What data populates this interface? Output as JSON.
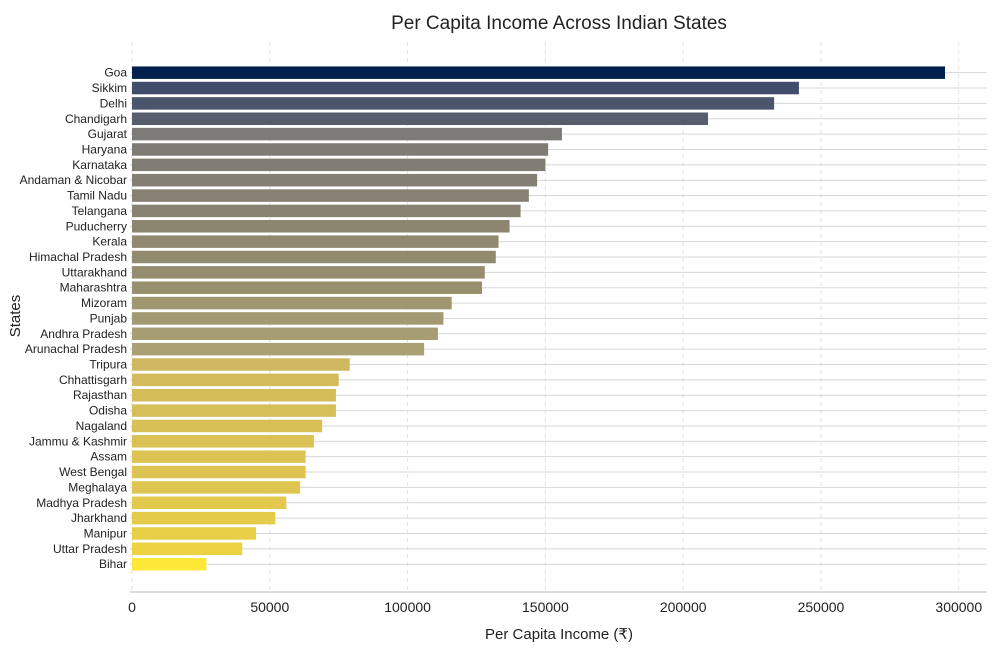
{
  "chart_data": {
    "type": "bar",
    "orientation": "horizontal",
    "title": "Per Capita Income Across Indian States",
    "xlabel": "Per Capita Income (₹)",
    "ylabel": "States",
    "xlim": [
      0,
      310000
    ],
    "xticks": [
      "0",
      "50000",
      "100000",
      "150000",
      "200000",
      "250000",
      "300000"
    ],
    "grid": true,
    "color_scale": "cividis",
    "categories": [
      "Goa",
      "Sikkim",
      "Delhi",
      "Chandigarh",
      "Gujarat",
      "Haryana",
      "Karnataka",
      "Andaman & Nicobar",
      "Tamil Nadu",
      "Telangana",
      "Puducherry",
      "Kerala",
      "Himachal Pradesh",
      "Uttarakhand",
      "Maharashtra",
      "Mizoram",
      "Punjab",
      "Andhra Pradesh",
      "Arunachal Pradesh",
      "Tripura",
      "Chhattisgarh",
      "Rajasthan",
      "Odisha",
      "Nagaland",
      "Jammu & Kashmir",
      "Assam",
      "West Bengal",
      "Meghalaya",
      "Madhya Pradesh",
      "Jharkhand",
      "Manipur",
      "Uttar Pradesh",
      "Bihar"
    ],
    "values": [
      295000,
      242000,
      233000,
      209000,
      156000,
      151000,
      150000,
      147000,
      144000,
      141000,
      137000,
      133000,
      132000,
      128000,
      127000,
      116000,
      113000,
      111000,
      106000,
      79000,
      75000,
      74000,
      74000,
      69000,
      66000,
      63000,
      63000,
      61000,
      56000,
      52000,
      45000,
      40000,
      27000
    ],
    "colors": [
      "#00204d",
      "#414d6b",
      "#4b566d",
      "#575d6d",
      "#7c7b78",
      "#7f7c75",
      "#807d75",
      "#837f74",
      "#868173",
      "#878272",
      "#8c8671",
      "#908970",
      "#918a6f",
      "#958d6e",
      "#978f6d",
      "#a09770",
      "#a29a72",
      "#a69d73",
      "#aba074",
      "#cfb85f",
      "#d3bb5c",
      "#d5bd5a",
      "#d6be59",
      "#d8c056",
      "#dac155",
      "#dcc353",
      "#ddc452",
      "#dfc551",
      "#e2c84d",
      "#e5cb4a",
      "#e8cf45",
      "#ecd241",
      "#fde737"
    ]
  }
}
